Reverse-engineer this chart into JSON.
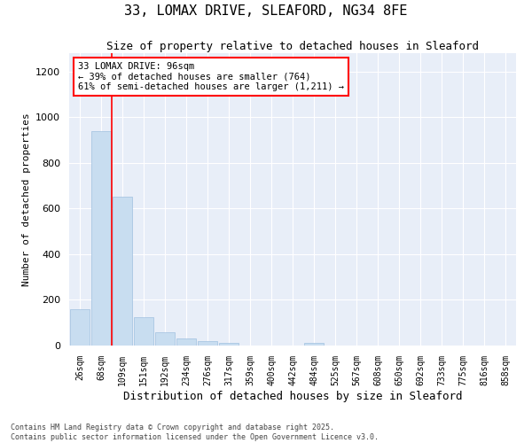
{
  "title_line1": "33, LOMAX DRIVE, SLEAFORD, NG34 8FE",
  "title_line2": "Size of property relative to detached houses in Sleaford",
  "xlabel": "Distribution of detached houses by size in Sleaford",
  "ylabel": "Number of detached properties",
  "bar_color": "#c8ddf0",
  "bar_edge_color": "#a0c0e0",
  "figure_bg": "#ffffff",
  "axes_bg": "#e8eef8",
  "grid_color": "#ffffff",
  "categories": [
    "26sqm",
    "68sqm",
    "109sqm",
    "151sqm",
    "192sqm",
    "234sqm",
    "276sqm",
    "317sqm",
    "359sqm",
    "400sqm",
    "442sqm",
    "484sqm",
    "525sqm",
    "567sqm",
    "608sqm",
    "650sqm",
    "692sqm",
    "733sqm",
    "775sqm",
    "816sqm",
    "858sqm"
  ],
  "values": [
    160,
    940,
    650,
    125,
    57,
    30,
    18,
    10,
    0,
    0,
    0,
    10,
    0,
    0,
    0,
    0,
    0,
    0,
    0,
    0,
    0
  ],
  "red_line_x": 1.5,
  "annotation_title": "33 LOMAX DRIVE: 96sqm",
  "annotation_line2": "← 39% of detached houses are smaller (764)",
  "annotation_line3": "61% of semi-detached houses are larger (1,211) →",
  "ylim": [
    0,
    1280
  ],
  "yticks": [
    0,
    200,
    400,
    600,
    800,
    1000,
    1200
  ],
  "footer_line1": "Contains HM Land Registry data © Crown copyright and database right 2025.",
  "footer_line2": "Contains public sector information licensed under the Open Government Licence v3.0."
}
